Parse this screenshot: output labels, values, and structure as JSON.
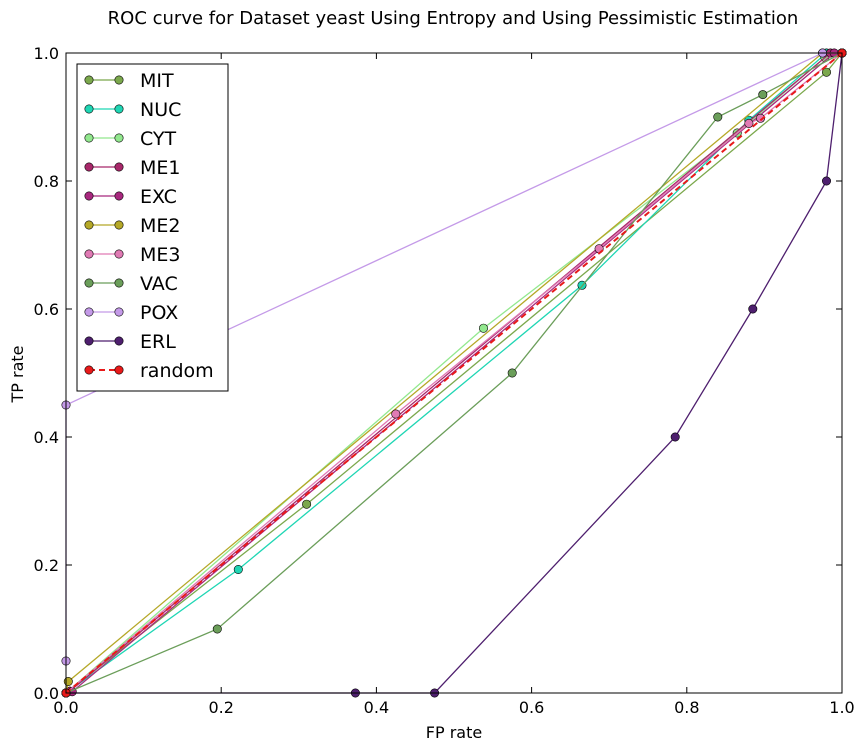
{
  "chart_data": {
    "type": "line",
    "title": "ROC curve for Dataset yeast Using Entropy and Using Pessimistic Estimation",
    "xlabel": "FP rate",
    "ylabel": "TP rate",
    "xlim": [
      0,
      1
    ],
    "ylim": [
      0,
      1
    ],
    "xticks": [
      "0.0",
      "0.2",
      "0.4",
      "0.6",
      "0.8",
      "1.0"
    ],
    "yticks": [
      "0.0",
      "0.2",
      "0.4",
      "0.6",
      "0.8",
      "1.0"
    ],
    "grid": false,
    "legend_position": "top-left",
    "series": [
      {
        "name": "MIT",
        "color": "#7ba84c",
        "dashed": false,
        "points": [
          [
            0,
            0
          ],
          [
            0.31,
            0.295
          ],
          [
            0.98,
            0.97
          ],
          [
            1,
            1
          ]
        ]
      },
      {
        "name": "NUC",
        "color": "#1fd6b4",
        "dashed": false,
        "points": [
          [
            0,
            0
          ],
          [
            0.222,
            0.193
          ],
          [
            0.665,
            0.637
          ],
          [
            0.88,
            0.895
          ],
          [
            0.98,
            1
          ],
          [
            1,
            1
          ]
        ]
      },
      {
        "name": "CYT",
        "color": "#92e88e",
        "dashed": false,
        "points": [
          [
            0,
            0
          ],
          [
            0.538,
            0.57
          ],
          [
            0.865,
            0.875
          ],
          [
            0.978,
            0.993
          ],
          [
            1,
            1
          ]
        ]
      },
      {
        "name": "ME1",
        "color": "#a8286a",
        "dashed": false,
        "points": [
          [
            0,
            0
          ],
          [
            0.005,
            0.003
          ],
          [
            0.985,
            1
          ],
          [
            1,
            1
          ]
        ]
      },
      {
        "name": "EXC",
        "color": "#a8287e",
        "dashed": false,
        "points": [
          [
            0,
            0
          ],
          [
            0.008,
            0.002
          ],
          [
            0.99,
            1
          ],
          [
            1,
            1
          ]
        ]
      },
      {
        "name": "ME2",
        "color": "#b5a828",
        "dashed": false,
        "points": [
          [
            0,
            0
          ],
          [
            0.003,
            0.018
          ],
          [
            0.975,
            1
          ],
          [
            1,
            1
          ]
        ]
      },
      {
        "name": "ME3",
        "color": "#e07ab4",
        "dashed": false,
        "points": [
          [
            0,
            0
          ],
          [
            0.425,
            0.436
          ],
          [
            0.687,
            0.694
          ],
          [
            0.88,
            0.89
          ],
          [
            0.895,
            0.898
          ],
          [
            1,
            1
          ]
        ]
      },
      {
        "name": "VAC",
        "color": "#6b9e5a",
        "dashed": false,
        "points": [
          [
            0,
            0
          ],
          [
            0.195,
            0.1
          ],
          [
            0.575,
            0.5
          ],
          [
            0.84,
            0.9
          ],
          [
            0.898,
            0.935
          ],
          [
            1,
            1
          ]
        ]
      },
      {
        "name": "POX",
        "color": "#c49ae8",
        "dashed": false,
        "points": [
          [
            0,
            0.05
          ],
          [
            0,
            0.45
          ],
          [
            0.975,
            1
          ],
          [
            1,
            1
          ]
        ]
      },
      {
        "name": "ERL",
        "color": "#4e1f6e",
        "dashed": false,
        "points": [
          [
            0,
            0
          ],
          [
            0.373,
            0
          ],
          [
            0.475,
            0
          ],
          [
            0.785,
            0.4
          ],
          [
            0.885,
            0.6
          ],
          [
            0.98,
            0.8
          ],
          [
            1,
            1
          ]
        ]
      },
      {
        "name": "random",
        "color": "#e81a1a",
        "dashed": true,
        "points": [
          [
            0,
            0
          ],
          [
            1,
            1
          ]
        ]
      }
    ]
  }
}
